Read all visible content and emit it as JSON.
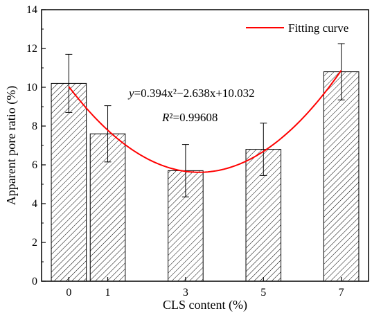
{
  "chart_data": {
    "type": "bar",
    "x_categories": [
      "0",
      "1",
      "3",
      "5",
      "7"
    ],
    "x_values": [
      0,
      1,
      3,
      5,
      7
    ],
    "values": [
      10.2,
      7.6,
      5.7,
      6.8,
      10.8
    ],
    "errors": [
      1.5,
      1.45,
      1.35,
      1.35,
      1.45
    ],
    "xlabel": "CLS content (%)",
    "ylabel": "Apparent pore ratio (%)",
    "ylim": [
      0,
      14
    ],
    "yticks": [
      0,
      2,
      4,
      6,
      8,
      10,
      12,
      14
    ],
    "xlim": [
      -0.7,
      7.7
    ],
    "bar_width_units": 0.9,
    "bar_pattern": "diagonal-hatch",
    "grid": false,
    "legend": {
      "position": "top-right",
      "entries": [
        "Fitting curve"
      ]
    },
    "fit": {
      "name": "Fitting curve",
      "a": 0.394,
      "b": -2.638,
      "c": 10.032,
      "color": "#ff0000",
      "equation_prefix": "y",
      "equation_body": "=0.394x²−2.638x+10.032",
      "r2_prefix": "R",
      "r2_body": "²=0.99608"
    }
  }
}
